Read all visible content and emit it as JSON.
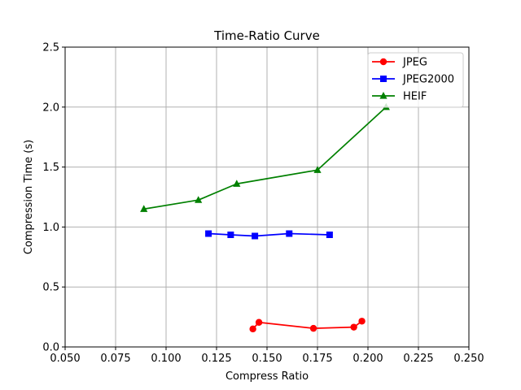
{
  "chart_data": {
    "type": "line",
    "title": "Time-Ratio Curve",
    "xlabel": "Compress Ratio",
    "ylabel": "Compression Time (s)",
    "xlim": [
      0.05,
      0.25
    ],
    "ylim": [
      0.0,
      2.5
    ],
    "xticks": [
      "0.050",
      "0.075",
      "0.100",
      "0.125",
      "0.150",
      "0.175",
      "0.200",
      "0.225",
      "0.250"
    ],
    "yticks": [
      "0.0",
      "0.5",
      "1.0",
      "1.5",
      "2.0",
      "2.5"
    ],
    "grid": true,
    "legend_position": "top-right",
    "series": [
      {
        "name": "JPEG",
        "color": "#ff0000",
        "marker": "circle",
        "x": [
          0.143,
          0.146,
          0.173,
          0.193,
          0.197
        ],
        "y": [
          0.15,
          0.205,
          0.155,
          0.165,
          0.215
        ]
      },
      {
        "name": "JPEG2000",
        "color": "#0000ff",
        "marker": "square",
        "x": [
          0.121,
          0.132,
          0.144,
          0.161,
          0.181
        ],
        "y": [
          0.945,
          0.935,
          0.925,
          0.945,
          0.935
        ]
      },
      {
        "name": "HEIF",
        "color": "#008000",
        "marker": "triangle",
        "x": [
          0.089,
          0.116,
          0.135,
          0.175,
          0.209
        ],
        "y": [
          1.15,
          1.225,
          1.36,
          1.475,
          2.0
        ]
      }
    ]
  }
}
